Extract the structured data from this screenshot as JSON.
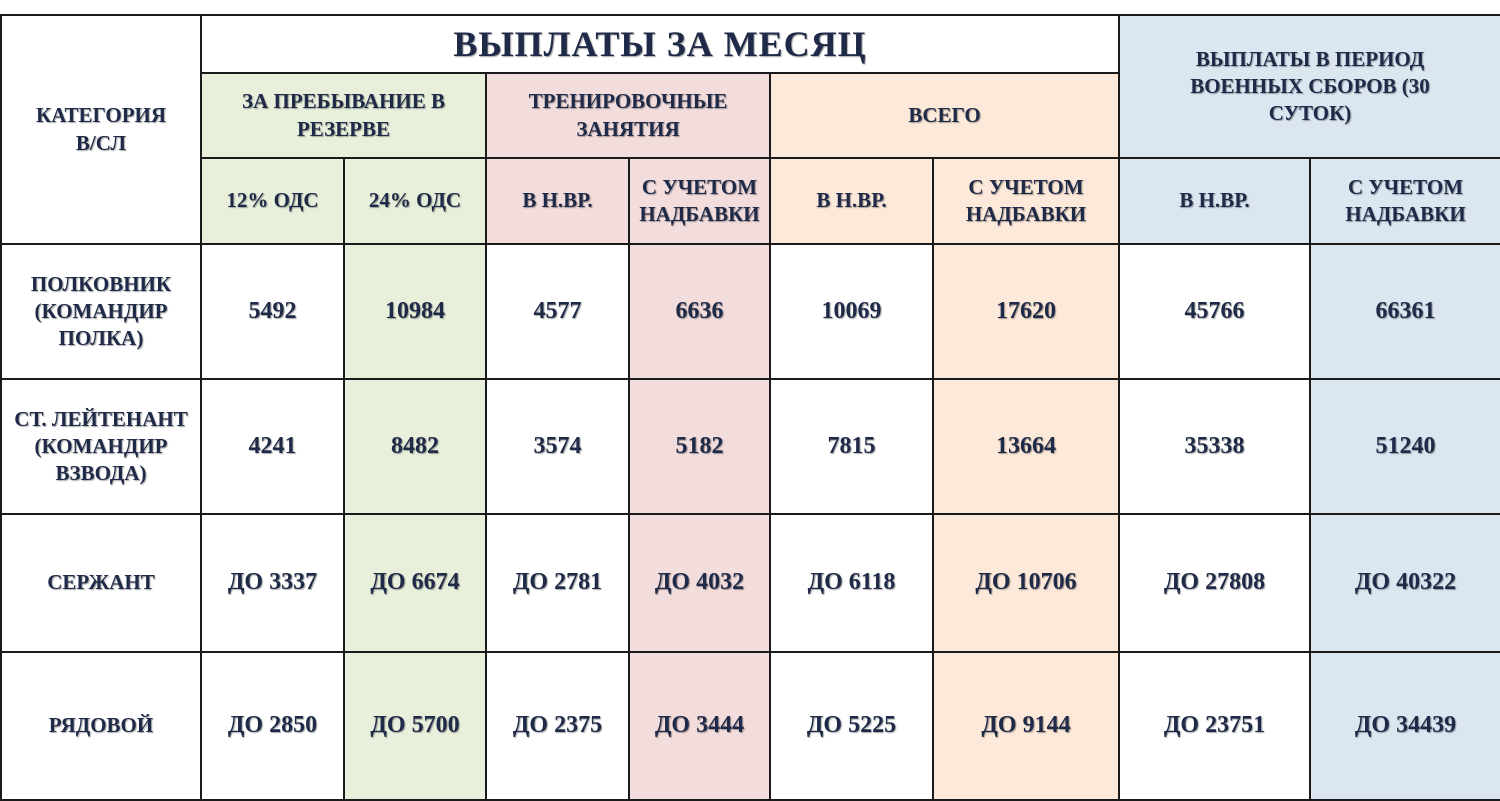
{
  "header": {
    "category": "КАТЕГОРИЯ В/СЛ",
    "monthly_title": "ВЫПЛАТЫ ЗА МЕСЯЦ",
    "camp_title": "ВЫПЛАТЫ В ПЕРИОД ВОЕННЫХ СБОРОВ (30 СУТОК)",
    "groups": [
      "ЗА ПРЕБЫВАНИЕ В РЕЗЕРВЕ",
      "ТРЕНИРОВОЧНЫЕ ЗАНЯТИЯ",
      "ВСЕГО"
    ],
    "subheaders": [
      "12% ОДС",
      "24% ОДС",
      "В Н.ВР.",
      "С УЧЕТОМ НАДБАВКИ",
      "В Н.ВР.",
      "С УЧЕТОМ НАДБАВКИ",
      "В Н.ВР.",
      "С УЧЕТОМ НАДБАВКИ"
    ]
  },
  "table": {
    "rows": [
      [
        "ПОЛКОВНИК (КОМАНДИР ПОЛКА)",
        "5492",
        "10984",
        "4577",
        "6636",
        "10069",
        "17620",
        "45766",
        "66361"
      ],
      [
        "СТ. ЛЕЙТЕНАНТ (КОМАНДИР ВЗВОДА)",
        "4241",
        "8482",
        "3574",
        "5182",
        "7815",
        "13664",
        "35338",
        "51240"
      ],
      [
        "СЕРЖАНТ",
        "ДО 3337",
        "ДО 6674",
        "ДО 2781",
        "ДО 4032",
        "ДО 6118",
        "ДО 10706",
        "ДО 27808",
        "ДО 40322"
      ],
      [
        "РЯДОВОЙ",
        "ДО 2850",
        "ДО 5700",
        "ДО 2375",
        "ДО 3444",
        "ДО 5225",
        "ДО 9144",
        "ДО 23751",
        "ДО 34439"
      ]
    ]
  }
}
